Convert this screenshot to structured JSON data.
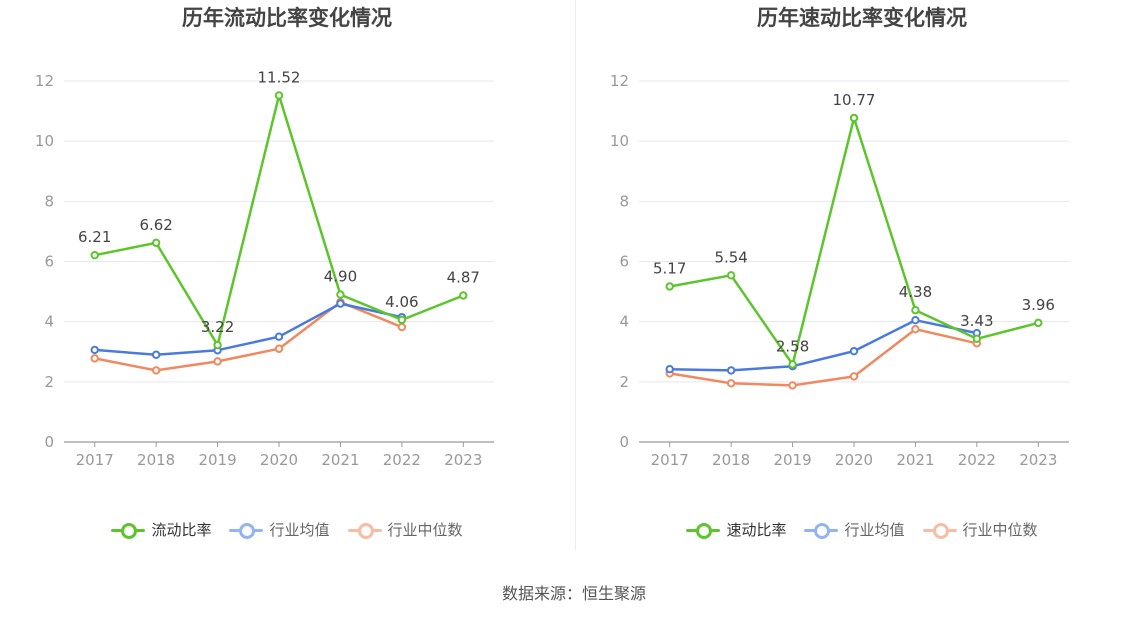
{
  "colors": {
    "company": "#5cc52c",
    "industry_avg": "#4a7bdc",
    "industry_median": "#f0895f",
    "industry_avg_legend": "#93b4f0",
    "industry_median_legend": "#f7bca3",
    "grid": "#e6e8f2",
    "axis": "#999999",
    "tick_text": "#999999",
    "label_text": "#444444"
  },
  "source": "数据来源：恒生聚源",
  "chart_data": [
    {
      "type": "line",
      "title": "历年流动比率变化情况",
      "categories": [
        "2017",
        "2018",
        "2019",
        "2020",
        "2021",
        "2022",
        "2023"
      ],
      "ylim": [
        0,
        12
      ],
      "yticks": [
        0,
        2,
        4,
        6,
        8,
        10,
        12
      ],
      "grid": true,
      "legend_position": "bottom",
      "series": [
        {
          "key": "company",
          "name": "流动比率",
          "values": [
            6.21,
            6.62,
            3.22,
            11.52,
            4.9,
            4.06,
            4.87
          ],
          "labels": [
            "6.21",
            "6.62",
            "3.22",
            "11.52",
            "4.90",
            "4.06",
            "4.87"
          ]
        },
        {
          "key": "industry_avg",
          "name": "行业均值",
          "values": [
            3.06,
            2.9,
            3.05,
            3.5,
            4.6,
            4.15,
            null
          ]
        },
        {
          "key": "industry_median",
          "name": "行业中位数",
          "values": [
            2.78,
            2.38,
            2.68,
            3.1,
            4.65,
            3.82,
            null
          ]
        }
      ]
    },
    {
      "type": "line",
      "title": "历年速动比率变化情况",
      "categories": [
        "2017",
        "2018",
        "2019",
        "2020",
        "2021",
        "2022",
        "2023"
      ],
      "ylim": [
        0,
        12
      ],
      "yticks": [
        0,
        2,
        4,
        6,
        8,
        10,
        12
      ],
      "grid": true,
      "legend_position": "bottom",
      "series": [
        {
          "key": "company",
          "name": "速动比率",
          "values": [
            5.17,
            5.54,
            2.58,
            10.77,
            4.38,
            3.43,
            3.96
          ],
          "labels": [
            "5.17",
            "5.54",
            "2.58",
            "10.77",
            "4.38",
            "3.43",
            "3.96"
          ]
        },
        {
          "key": "industry_avg",
          "name": "行业均值",
          "values": [
            2.42,
            2.38,
            2.52,
            3.02,
            4.05,
            3.62,
            null
          ]
        },
        {
          "key": "industry_median",
          "name": "行业中位数",
          "values": [
            2.28,
            1.95,
            1.88,
            2.18,
            3.75,
            3.28,
            null
          ]
        }
      ]
    }
  ]
}
